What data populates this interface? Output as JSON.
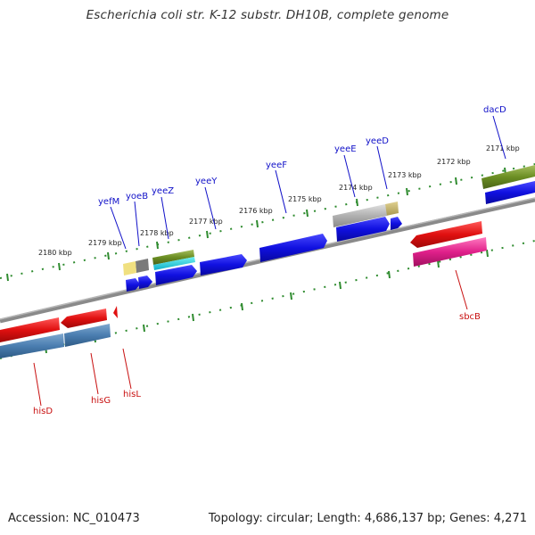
{
  "title": "Escherichia coli str. K-12 substr. DH10B, complete genome",
  "footer": {
    "accession": "Accession: NC_010473",
    "summary": "Topology: circular; Length: 4,686,137 bp; Genes: 4,271"
  },
  "scale_labels": [
    "2171 kbp",
    "2172 kbp",
    "2173 kbp",
    "2174 kbp",
    "2175 kbp",
    "2176 kbp",
    "2177 kbp",
    "2178 kbp",
    "2179 kbp",
    "2180 kbp"
  ],
  "genes_forward": [
    "dacD",
    "yeeD",
    "yeeE",
    "yeeF",
    "yeeY",
    "yeeZ",
    "yoeB",
    "yefM"
  ],
  "genes_reverse": [
    "sbcB",
    "hisL",
    "hisG",
    "hisD"
  ],
  "colors": {
    "forward": "#1010e0",
    "reverse": "#e01010",
    "backbone": "#808080",
    "ticks": "#2e8b2e",
    "forward_label": "#1010c8",
    "reverse_label": "#c81010"
  }
}
